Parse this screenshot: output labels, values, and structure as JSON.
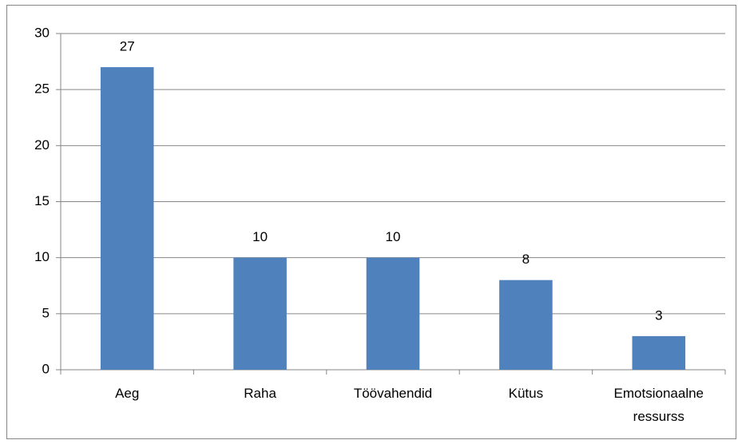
{
  "chart_data": {
    "type": "bar",
    "categories": [
      "Aeg",
      "Raha",
      "Töövahendid",
      "Kütus",
      "Emotsionaalne ressurss"
    ],
    "values": [
      27,
      10,
      10,
      8,
      3
    ],
    "color": "#4f81bd",
    "ylim": [
      0,
      30
    ],
    "yticks": [
      0,
      5,
      10,
      15,
      20,
      25,
      30
    ],
    "grid": true
  }
}
